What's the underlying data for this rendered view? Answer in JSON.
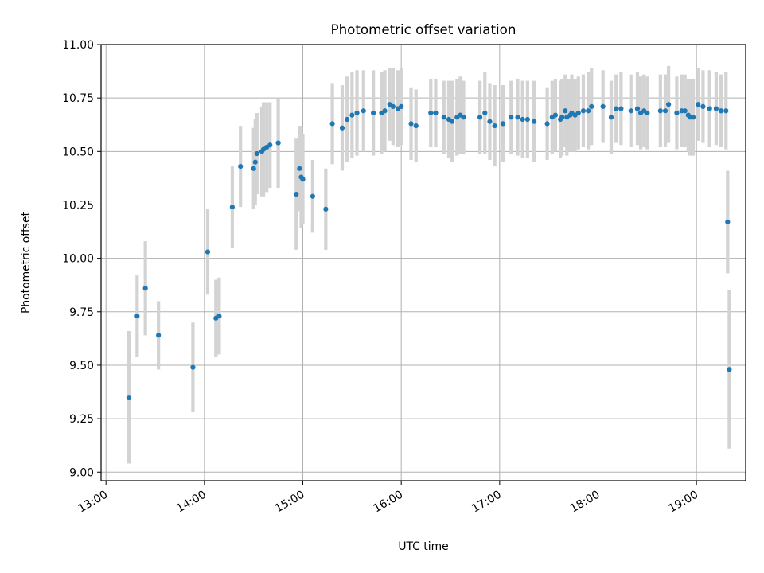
{
  "chart_data": {
    "type": "scatter",
    "title": "Photometric offset variation",
    "xlabel": "UTC time",
    "ylabel": "Photometric offset",
    "x_unit": "hours UTC",
    "xlim": [
      "12:57",
      "19:30"
    ],
    "ylim": [
      8.96,
      11.0
    ],
    "x_ticks": [
      "13:00",
      "14:00",
      "15:00",
      "16:00",
      "17:00",
      "18:00",
      "19:00"
    ],
    "y_ticks": [
      "9.00",
      "9.25",
      "9.50",
      "9.75",
      "10.00",
      "10.25",
      "10.50",
      "10.75",
      "11.00"
    ],
    "grid": true,
    "colors": {
      "points": "#1f77b4",
      "errorbars": "#d3d3d3",
      "grid": "#b0b0b0"
    },
    "series": [
      {
        "x": [
          "13:14",
          "13:19",
          "13:24",
          "13:32",
          "13:53",
          "14:02",
          "14:07",
          "14:09",
          "14:17",
          "14:22",
          "14:30",
          "14:31",
          "14:32",
          "14:35",
          "14:36",
          "14:38",
          "14:40",
          "14:45",
          "14:56",
          "14:58",
          "14:59",
          "15:00",
          "15:06",
          "15:14",
          "15:18",
          "15:24",
          "15:27",
          "15:30",
          "15:33",
          "15:37",
          "15:43",
          "15:48",
          "15:50",
          "15:53",
          "15:55",
          "15:58",
          "16:00",
          "16:06",
          "16:09",
          "16:18",
          "16:21",
          "16:26",
          "16:29",
          "16:31",
          "16:34",
          "16:36",
          "16:38",
          "16:48",
          "16:51",
          "16:54",
          "16:57",
          "17:02",
          "17:07",
          "17:11",
          "17:14",
          "17:17",
          "17:21",
          "17:29",
          "17:32",
          "17:34",
          "17:37",
          "17:38",
          "17:40",
          "17:41",
          "17:43",
          "17:44",
          "17:46",
          "17:48",
          "17:51",
          "17:54",
          "17:56",
          "18:03",
          "18:08",
          "18:11",
          "18:14",
          "18:20",
          "18:24",
          "18:26",
          "18:28",
          "18:30",
          "18:38",
          "18:41",
          "18:43",
          "18:48",
          "18:51",
          "18:53",
          "18:55",
          "18:56",
          "18:58",
          "19:01",
          "19:04",
          "19:08",
          "19:12",
          "19:15",
          "19:18",
          "19:19",
          "19:20"
        ],
        "y": [
          9.35,
          9.73,
          9.86,
          9.64,
          9.49,
          10.03,
          9.72,
          9.73,
          10.24,
          10.43,
          10.42,
          10.45,
          10.49,
          10.5,
          10.51,
          10.52,
          10.53,
          10.54,
          10.3,
          10.42,
          10.38,
          10.37,
          10.29,
          10.23,
          10.63,
          10.61,
          10.65,
          10.67,
          10.68,
          10.69,
          10.68,
          10.68,
          10.69,
          10.72,
          10.71,
          10.7,
          10.71,
          10.63,
          10.62,
          10.68,
          10.68,
          10.66,
          10.65,
          10.64,
          10.66,
          10.67,
          10.66,
          10.66,
          10.68,
          10.64,
          10.62,
          10.63,
          10.66,
          10.66,
          10.65,
          10.65,
          10.64,
          10.63,
          10.66,
          10.67,
          10.65,
          10.66,
          10.69,
          10.66,
          10.67,
          10.68,
          10.67,
          10.68,
          10.69,
          10.69,
          10.71,
          10.71,
          10.66,
          10.7,
          10.7,
          10.69,
          10.7,
          10.68,
          10.69,
          10.68,
          10.69,
          10.69,
          10.72,
          10.68,
          10.69,
          10.69,
          10.67,
          10.66,
          10.66,
          10.72,
          10.71,
          10.7,
          10.7,
          10.69,
          10.69,
          10.17,
          9.48
        ],
        "err": [
          0.31,
          0.19,
          0.22,
          0.16,
          0.21,
          0.2,
          0.18,
          0.18,
          0.19,
          0.19,
          0.19,
          0.2,
          0.19,
          0.21,
          0.22,
          0.21,
          0.2,
          0.21,
          0.26,
          0.2,
          0.24,
          0.21,
          0.17,
          0.19,
          0.19,
          0.2,
          0.2,
          0.2,
          0.2,
          0.19,
          0.2,
          0.19,
          0.19,
          0.17,
          0.18,
          0.18,
          0.18,
          0.17,
          0.17,
          0.16,
          0.16,
          0.17,
          0.18,
          0.19,
          0.18,
          0.18,
          0.17,
          0.17,
          0.19,
          0.18,
          0.19,
          0.18,
          0.17,
          0.18,
          0.18,
          0.18,
          0.19,
          0.17,
          0.17,
          0.17,
          0.18,
          0.18,
          0.17,
          0.18,
          0.17,
          0.18,
          0.17,
          0.17,
          0.17,
          0.18,
          0.18,
          0.17,
          0.17,
          0.16,
          0.17,
          0.17,
          0.17,
          0.17,
          0.17,
          0.17,
          0.17,
          0.17,
          0.18,
          0.17,
          0.17,
          0.17,
          0.17,
          0.18,
          0.18,
          0.17,
          0.17,
          0.18,
          0.17,
          0.17,
          0.18,
          0.24,
          0.37
        ]
      }
    ]
  }
}
